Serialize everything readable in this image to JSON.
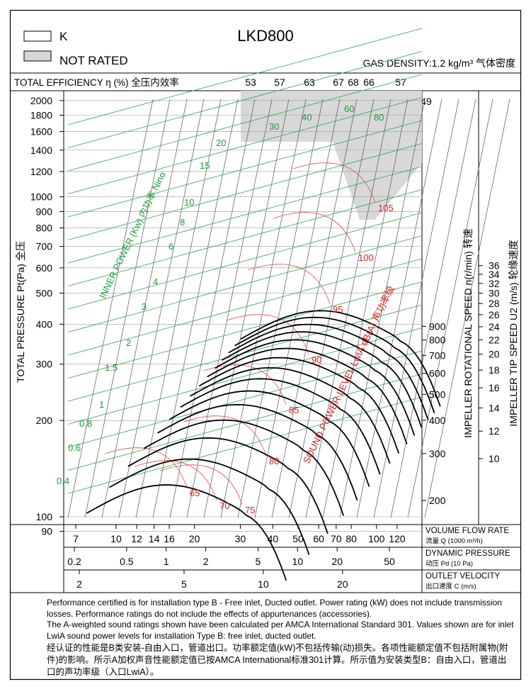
{
  "header": {
    "model": "LKD800",
    "legend_k": "K",
    "legend_not_rated": "NOT RATED",
    "gas_density": "GAS DENSITY:1.2 kg/m³  气体密度"
  },
  "efficiency_row": {
    "label": "TOTAL EFFICIENCY η (%) 全压内效率",
    "values": [
      "53",
      "57",
      "63",
      "67",
      "68",
      "66",
      "57",
      "49"
    ]
  },
  "axes": {
    "pressure_label": "TOTAL PRESSURE Pt(Pa) 全压",
    "pressure_ticks": [
      90,
      100,
      200,
      300,
      400,
      500,
      600,
      700,
      800,
      900,
      1000,
      1200,
      1400,
      1600,
      1800,
      2000
    ],
    "speed_label": "IMPELLER ROTATIONAL SPEED n(r/min) 转速",
    "speed_ticks": [
      200,
      300,
      400,
      500,
      600,
      700,
      800,
      900
    ],
    "tip_label": "IMPELLER TIP SPEED U2 (m/s) 轮缘速度",
    "tip_ticks": [
      10,
      12,
      14,
      16,
      18,
      20,
      22,
      24,
      26,
      28,
      30,
      32,
      34,
      36
    ],
    "flow_label": "VOLUME FLOW RATE",
    "flow_sublabel": "流量 Q (1000 m³/h)",
    "flow_ticks": [
      7,
      10,
      12,
      14,
      16,
      20,
      30,
      40,
      50,
      60,
      70,
      80,
      100,
      120
    ],
    "pd_label": "DYNAMIC PRESSURE",
    "pd_sublabel": "动压 Pd (10 Pa)",
    "pd_ticks": [
      "0.2",
      "0.5",
      "1",
      "2",
      "5",
      "10",
      "20",
      "50"
    ],
    "vel_label": "OUTLET VELOCITY",
    "vel_sublabel": "出口速度 C (m/s)",
    "vel_ticks": [
      "2",
      "5",
      "10",
      "20"
    ]
  },
  "chart_data": {
    "type": "line",
    "title": "LKD800",
    "xlabel": "VOLUME FLOW RATE 流量 Q (1000 m³/h)",
    "ylabel": "TOTAL PRESSURE Pt(Pa) 全压",
    "x_scale": "log",
    "y_scale": "log",
    "xlim": [
      6,
      135
    ],
    "ylim": [
      85,
      2200
    ],
    "power_label": "INNER POWER (Kw) 内功率 Nino",
    "power_values": [
      "0.4",
      "0.6",
      "0.8",
      "1",
      "1.5",
      "2",
      "3",
      "4",
      "6",
      "8",
      "10",
      "15",
      "20",
      "30",
      "40",
      "60",
      "80"
    ],
    "sound_label": "SOUND POWER LEVEL LwiA dB(A) 声功率级",
    "sound_values": [
      "65",
      "70",
      "75",
      "80",
      "85",
      "90",
      "95",
      "100",
      "105"
    ],
    "speed_series_rpm": [
      200,
      300,
      400,
      500,
      600,
      700,
      800,
      900
    ]
  },
  "notes": {
    "en1": "Performance certified is for installation type B - Free inlet, Ducted outlet. Power rating (kW) does not include transmission losses. Performance ratings do not include the effects of appurtenances (accessories).",
    "en2": "The A-weighted sound ratings shown have been calculated per AMCA International Standard 301. Values shown are for inlet LwiA sound power levels for installation Type B: free inlet, ducted outlet.",
    "cn": "经认证的性能是B类安装-自由入口，管道出口。功率额定值(kW)不包括传输(动)损失。各项性能额定值不包括附属物(附件)的影响。所示A加权声音性能额定值已按AMCA International标准301计算。所示值为安装类型B：自由入口，管道出口的声功率级（入口LwiA）。"
  }
}
